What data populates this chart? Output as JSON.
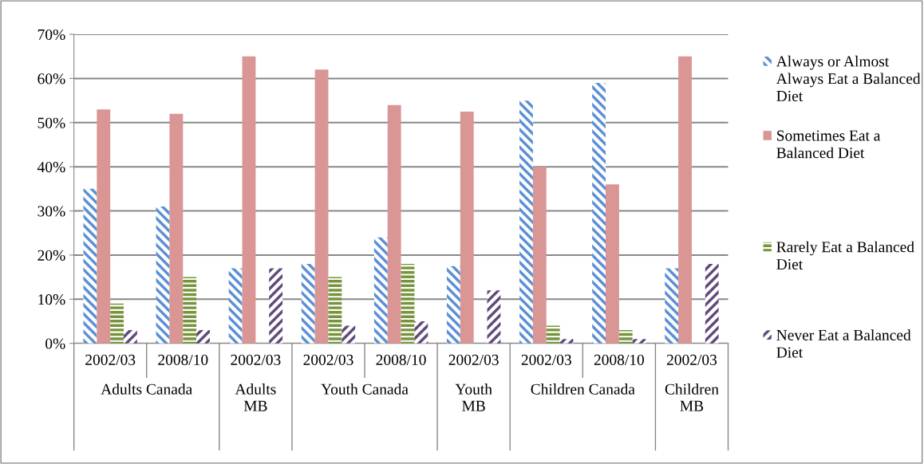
{
  "chart_data": {
    "type": "bar",
    "categories": [
      "2002/03",
      "2008/10",
      "2002/03",
      "2002/03",
      "2008/10",
      "2002/03",
      "2002/03",
      "2008/10",
      "2002/03"
    ],
    "series": [
      {
        "name": "Always or Almost Always Eat a Balanced Diet",
        "color": "#5b8fd6",
        "values": [
          35,
          31,
          17,
          18,
          24,
          17.5,
          55,
          59,
          17
        ]
      },
      {
        "name": "Sometimes Eat a Balanced Diet",
        "color": "#d99694",
        "values": [
          53,
          52,
          65,
          62,
          54,
          52.5,
          40,
          36,
          65
        ]
      },
      {
        "name": "Rarely Eat a Balanced Diet",
        "color": "#77933c",
        "values": [
          9,
          15,
          null,
          15,
          18,
          null,
          4,
          3,
          null
        ]
      },
      {
        "name": "Never Eat a Balanced Diet",
        "color": "#604a7b",
        "values": [
          3,
          3,
          17,
          4,
          5,
          12,
          1,
          1,
          18
        ]
      }
    ],
    "annotations": [
      "Adults Canada",
      "Adults MB",
      "Youth Canada",
      "Youth MB",
      "Children Canada",
      "Children MB"
    ],
    "ylim": [
      0,
      70
    ],
    "yticks": [
      {
        "value": 0,
        "label": "0%"
      },
      {
        "value": 10,
        "label": "10%"
      },
      {
        "value": 20,
        "label": "20%"
      },
      {
        "value": 30,
        "label": "30%"
      },
      {
        "value": 40,
        "label": "40%"
      },
      {
        "value": 50,
        "label": "50%"
      },
      {
        "value": 60,
        "label": "60%"
      },
      {
        "value": 70,
        "label": "70%"
      }
    ],
    "grid": "y",
    "legend": "right"
  }
}
